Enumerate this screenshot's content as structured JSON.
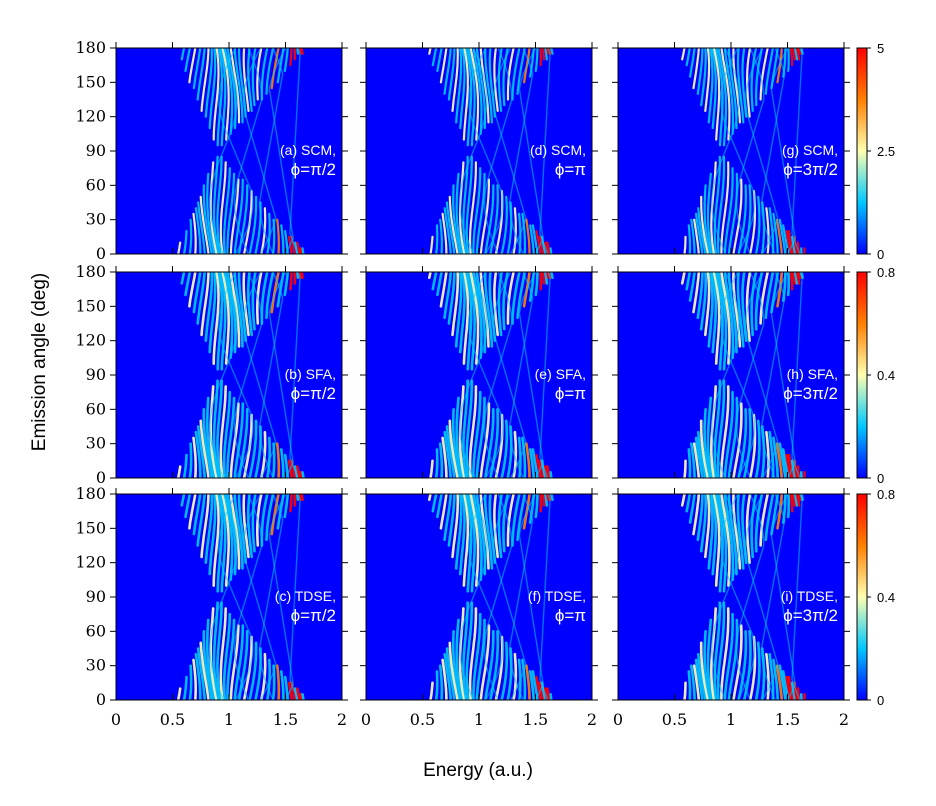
{
  "chart_data": {
    "type": "heatmap",
    "layout": "3x3 grid",
    "xlabel": "Energy (a.u.)",
    "ylabel": "Emission angle (deg)",
    "xlim": [
      0,
      2
    ],
    "ylim": [
      0,
      180
    ],
    "x_ticks": [
      "0",
      "0.5",
      "1",
      "1.5",
      "2"
    ],
    "y_ticks": [
      "0",
      "30",
      "60",
      "90",
      "120",
      "150",
      "180"
    ],
    "colormap": [
      "#0000ff",
      "#00c8ff",
      "#ffffb0",
      "#ff8000",
      "#ff0000"
    ],
    "rows": [
      {
        "method": "SCM",
        "colorbar_ticks": [
          "0",
          "2.5",
          "5"
        ],
        "colorbar_range": [
          0,
          5
        ]
      },
      {
        "method": "SFA",
        "colorbar_ticks": [
          "0",
          "0.4",
          "0.8"
        ],
        "colorbar_range": [
          0,
          0.8
        ]
      },
      {
        "method": "TDSE",
        "colorbar_ticks": [
          "0",
          "0.4",
          "0.8"
        ],
        "colorbar_range": [
          0,
          0.8
        ]
      }
    ],
    "panels": [
      {
        "id": "a",
        "label": "(a) SCM,",
        "phase": "ϕ=π/2",
        "row": 0,
        "col": 0
      },
      {
        "id": "d",
        "label": "(d) SCM,",
        "phase": "ϕ=π",
        "row": 0,
        "col": 1
      },
      {
        "id": "g",
        "label": "(g) SCM,",
        "phase": "ϕ=3π/2",
        "row": 0,
        "col": 2
      },
      {
        "id": "b",
        "label": "(b) SFA,",
        "phase": "ϕ=π/2",
        "row": 1,
        "col": 0
      },
      {
        "id": "e",
        "label": "(e) SFA,",
        "phase": "ϕ=π",
        "row": 1,
        "col": 1
      },
      {
        "id": "h",
        "label": "(h) SFA,",
        "phase": "ϕ=3π/2",
        "row": 1,
        "col": 2
      },
      {
        "id": "c",
        "label": "(c) TDSE,",
        "phase": "ϕ=π/2",
        "row": 2,
        "col": 0
      },
      {
        "id": "f",
        "label": "(f) TDSE,",
        "phase": "ϕ=π",
        "row": 2,
        "col": 1
      },
      {
        "id": "i",
        "label": "(i) TDSE,",
        "phase": "ϕ=3π/2",
        "row": 2,
        "col": 2
      }
    ]
  }
}
